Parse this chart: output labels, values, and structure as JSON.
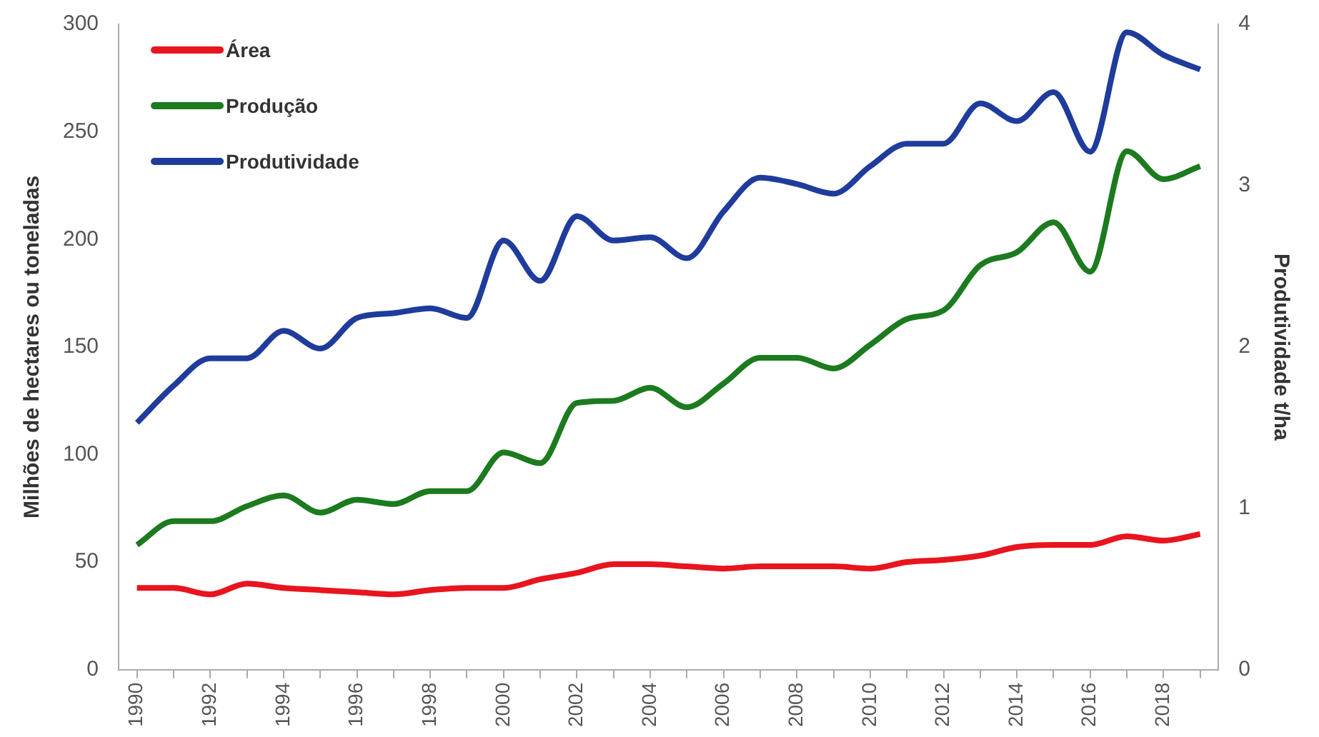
{
  "chart_data": {
    "type": "line",
    "ylabel": "Milhões de hectares ou toneladas",
    "y2label": "Produtividade t/ha",
    "categories": [
      "1990",
      null,
      "1992",
      null,
      "1994",
      null,
      "1996",
      null,
      "1998",
      null,
      "2000",
      null,
      "2002",
      null,
      "2004",
      null,
      "2006",
      null,
      "2008",
      null,
      "2010",
      null,
      "2012",
      null,
      "2014",
      null,
      "2016",
      null,
      "2018",
      null
    ],
    "series": [
      {
        "name": "Área",
        "color": "#e8141e",
        "values": [
          38,
          38,
          35,
          40,
          38,
          37,
          36,
          35,
          37,
          38,
          38,
          42,
          45,
          49,
          49,
          48,
          47,
          48,
          48,
          48,
          47,
          50,
          51,
          53,
          57,
          58,
          58,
          62,
          60,
          63
        ]
      },
      {
        "name": "Produção",
        "color": "#1c7a1f",
        "values": [
          58,
          69,
          69,
          76,
          81,
          73,
          79,
          77,
          83,
          83,
          101,
          96,
          124,
          125,
          131,
          122,
          133,
          145,
          145,
          140,
          151,
          163,
          167,
          188,
          194,
          208,
          185,
          241,
          228,
          234
        ]
      },
      {
        "name": "Produtividade",
        "color": "#1f3c9c",
        "axis": "y2",
        "values": [
          1.53,
          1.76,
          1.93,
          1.93,
          2.1,
          1.99,
          2.18,
          2.21,
          2.24,
          2.18,
          2.66,
          2.41,
          2.81,
          2.66,
          2.68,
          2.55,
          2.84,
          3.05,
          3.01,
          2.95,
          3.12,
          3.26,
          3.26,
          3.51,
          3.4,
          3.58,
          3.21,
          3.95,
          3.81,
          3.72
        ]
      }
    ],
    "ylim": [
      0,
      300
    ],
    "yticks": [
      0,
      50,
      100,
      150,
      200,
      250,
      300
    ],
    "y2lim": [
      0,
      4
    ],
    "y2ticks": [
      0,
      1,
      2,
      3,
      4
    ],
    "grid": false,
    "legend": "top left",
    "marker": "none",
    "line_style": "solid"
  }
}
